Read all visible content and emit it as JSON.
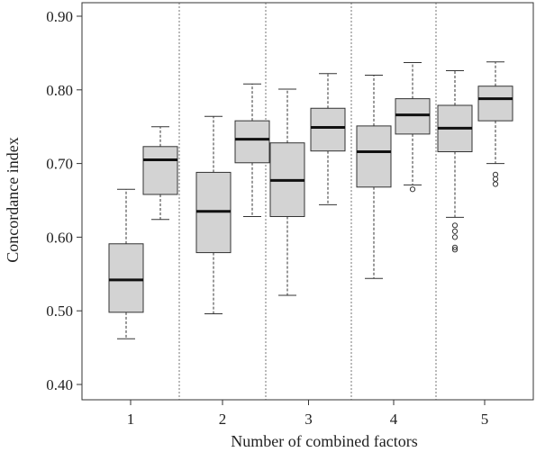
{
  "chart_data": {
    "type": "box",
    "xlabel": "Number of combined factors",
    "ylabel": "Concordance index",
    "ylim": [
      0.4,
      0.9
    ],
    "y_ticks": [
      "0.40",
      "0.50",
      "0.60",
      "0.70",
      "0.80",
      "0.90"
    ],
    "y_tick_values": [
      0.4,
      0.5,
      0.6,
      0.7,
      0.8,
      0.9
    ],
    "groups": [
      "1",
      "2",
      "3",
      "4",
      "5"
    ],
    "grid": false,
    "group_separators": "dashed vertical lines between groups",
    "box_fill": "#d3d3d3",
    "boxes": [
      {
        "group": "1",
        "min": 0.462,
        "q1": 0.498,
        "median": 0.542,
        "q3": 0.591,
        "max": 0.665,
        "outliers": []
      },
      {
        "group": "1",
        "min": 0.624,
        "q1": 0.658,
        "median": 0.705,
        "q3": 0.723,
        "max": 0.75,
        "outliers": []
      },
      {
        "group": "2",
        "min": 0.496,
        "q1": 0.579,
        "median": 0.635,
        "q3": 0.688,
        "max": 0.764,
        "outliers": []
      },
      {
        "group": "2",
        "min": 0.628,
        "q1": 0.701,
        "median": 0.733,
        "q3": 0.758,
        "max": 0.808,
        "outliers": []
      },
      {
        "group": "3",
        "min": 0.521,
        "q1": 0.628,
        "median": 0.677,
        "q3": 0.728,
        "max": 0.801,
        "outliers": []
      },
      {
        "group": "3",
        "min": 0.644,
        "q1": 0.717,
        "median": 0.749,
        "q3": 0.775,
        "max": 0.822,
        "outliers": []
      },
      {
        "group": "4",
        "min": 0.544,
        "q1": 0.668,
        "median": 0.716,
        "q3": 0.751,
        "max": 0.82,
        "outliers": []
      },
      {
        "group": "4",
        "min": 0.671,
        "q1": 0.74,
        "median": 0.766,
        "q3": 0.788,
        "max": 0.837,
        "outliers": [
          0.665
        ]
      },
      {
        "group": "5",
        "min": 0.627,
        "q1": 0.716,
        "median": 0.748,
        "q3": 0.779,
        "max": 0.826,
        "outliers": [
          0.616,
          0.608,
          0.6,
          0.586,
          0.583
        ]
      },
      {
        "group": "5",
        "min": 0.7,
        "q1": 0.758,
        "median": 0.788,
        "q3": 0.805,
        "max": 0.838,
        "outliers": [
          0.685,
          0.679,
          0.672
        ]
      }
    ]
  }
}
